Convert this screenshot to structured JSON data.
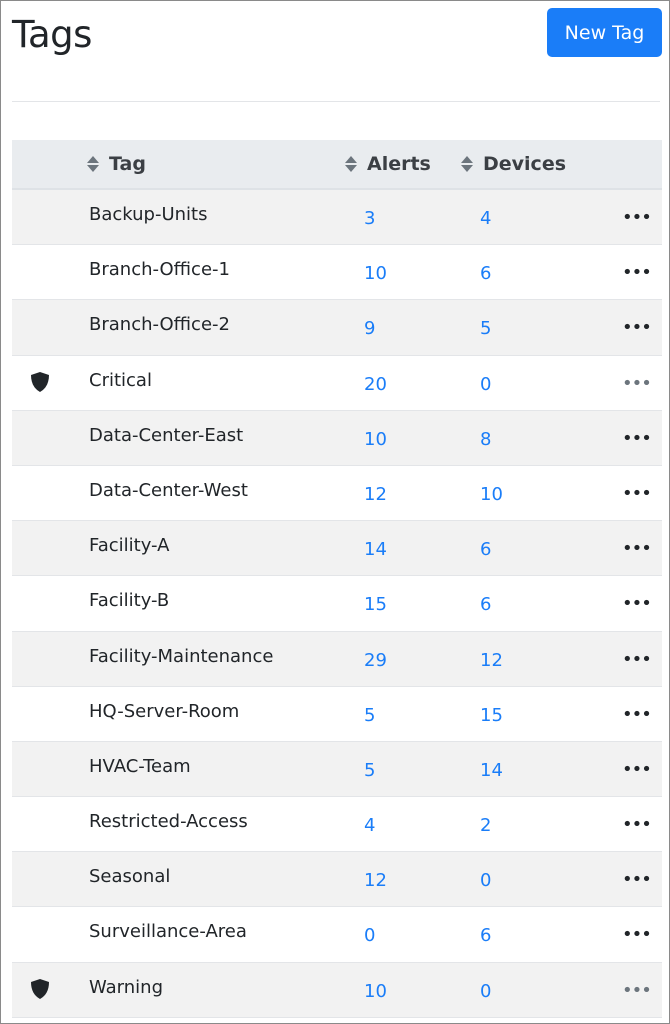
{
  "page": {
    "title": "Tags",
    "new_button": "New Tag"
  },
  "table": {
    "headers": {
      "tag": "Tag",
      "alerts": "Alerts",
      "devices": "Devices"
    },
    "rows": [
      {
        "name": "Backup-Units",
        "alerts": "3",
        "devices": "4",
        "system": false
      },
      {
        "name": "Branch-Office-1",
        "alerts": "10",
        "devices": "6",
        "system": false
      },
      {
        "name": "Branch-Office-2",
        "alerts": "9",
        "devices": "5",
        "system": false
      },
      {
        "name": "Critical",
        "alerts": "20",
        "devices": "0",
        "system": true
      },
      {
        "name": "Data-Center-East",
        "alerts": "10",
        "devices": "8",
        "system": false
      },
      {
        "name": "Data-Center-West",
        "alerts": "12",
        "devices": "10",
        "system": false
      },
      {
        "name": "Facility-A",
        "alerts": "14",
        "devices": "6",
        "system": false
      },
      {
        "name": "Facility-B",
        "alerts": "15",
        "devices": "6",
        "system": false
      },
      {
        "name": "Facility-Maintenance",
        "alerts": "29",
        "devices": "12",
        "system": false
      },
      {
        "name": "HQ-Server-Room",
        "alerts": "5",
        "devices": "15",
        "system": false
      },
      {
        "name": "HVAC-Team",
        "alerts": "5",
        "devices": "14",
        "system": false
      },
      {
        "name": "Restricted-Access",
        "alerts": "4",
        "devices": "2",
        "system": false
      },
      {
        "name": "Seasonal",
        "alerts": "12",
        "devices": "0",
        "system": false
      },
      {
        "name": "Surveillance-Area",
        "alerts": "0",
        "devices": "6",
        "system": false
      },
      {
        "name": "Warning",
        "alerts": "10",
        "devices": "0",
        "system": true
      }
    ],
    "menu_label": "•••"
  },
  "colors": {
    "accent": "#1a7df8",
    "header_bg": "#e9ecef",
    "stripe": "#f2f2f2"
  }
}
